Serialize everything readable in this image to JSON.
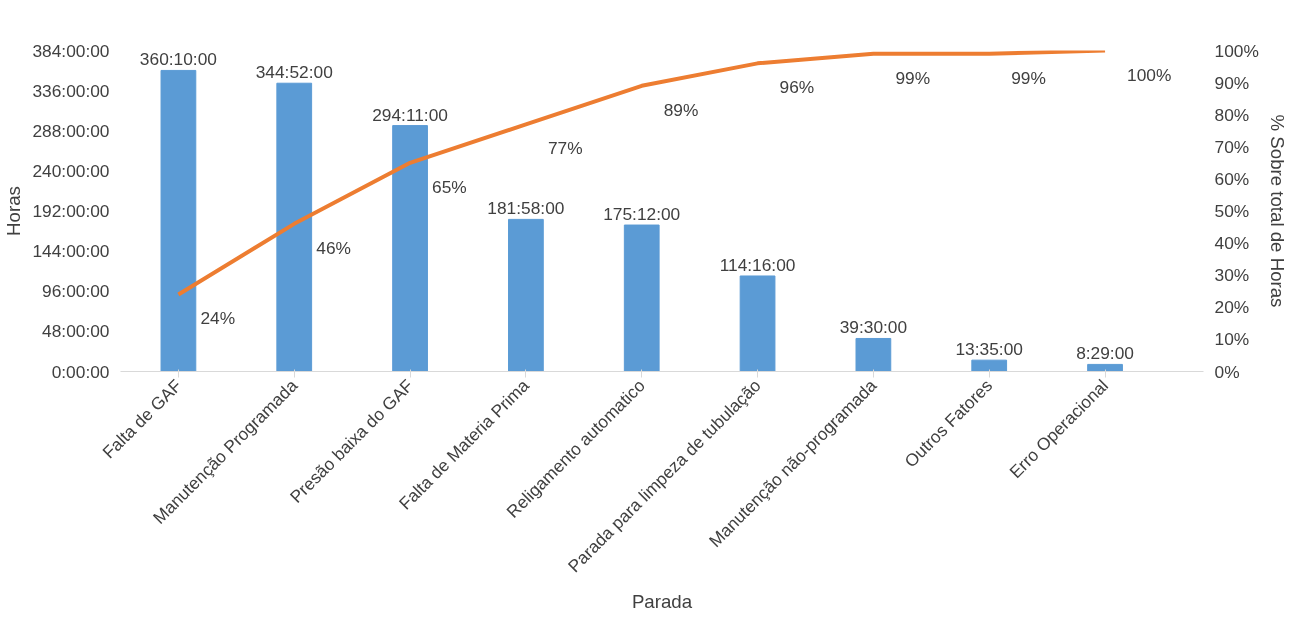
{
  "chart_data": {
    "type": "bar",
    "xlabel": "Parada",
    "ylabel": "Horas",
    "y2label": "% Sobre total de Horas",
    "categories": [
      "Falta de GAF",
      "Manutenção Programada",
      "Presão baixa do GAF",
      "Falta de Materia Prima",
      "Religamento automatico",
      "Parada para limpeza de tubulação",
      "Manutenção não-programada",
      "Outros Fatores",
      "Erro Operacional"
    ],
    "series": [
      {
        "color": "#5b9bd5",
        "values": [
          360.1667,
          344.8667,
          294.1833,
          181.9667,
          175.2,
          114.2667,
          39.5,
          13.5833,
          8.4833
        ],
        "value_labels": [
          "360:10:00",
          "344:52:00",
          "294:11:00",
          "181:58:00",
          "175:12:00",
          "114:16:00",
          "39:30:00",
          "13:35:00",
          "8:29:00"
        ]
      },
      {
        "type": "line",
        "axis": "y2",
        "color": "#ed7d31",
        "values": [
          24,
          46,
          65,
          77,
          89,
          96,
          99,
          99,
          100
        ],
        "value_labels": [
          "24%",
          "46%",
          "65%",
          "77%",
          "89%",
          "96%",
          "99%",
          "99%",
          "100%"
        ]
      }
    ],
    "ylim": [
      0,
      384
    ],
    "yticks": [
      {
        "value": 0,
        "label": "0:00:00"
      },
      {
        "value": 48,
        "label": "48:00:00"
      },
      {
        "value": 96,
        "label": "96:00:00"
      },
      {
        "value": 144,
        "label": "144:00:00"
      },
      {
        "value": 192,
        "label": "192:00:00"
      },
      {
        "value": 240,
        "label": "240:00:00"
      },
      {
        "value": 288,
        "label": "288:00:00"
      },
      {
        "value": 336,
        "label": "336:00:00"
      },
      {
        "value": 384,
        "label": "384:00:00"
      }
    ],
    "y2lim": [
      0,
      100
    ],
    "y2ticks": [
      {
        "value": 0,
        "label": "0%"
      },
      {
        "value": 10,
        "label": "10%"
      },
      {
        "value": 20,
        "label": "20%"
      },
      {
        "value": 30,
        "label": "30%"
      },
      {
        "value": 40,
        "label": "40%"
      },
      {
        "value": 50,
        "label": "50%"
      },
      {
        "value": 60,
        "label": "60%"
      },
      {
        "value": 70,
        "label": "70%"
      },
      {
        "value": 80,
        "label": "80%"
      },
      {
        "value": 90,
        "label": "90%"
      },
      {
        "value": 100,
        "label": "100%"
      }
    ],
    "grid": false
  }
}
